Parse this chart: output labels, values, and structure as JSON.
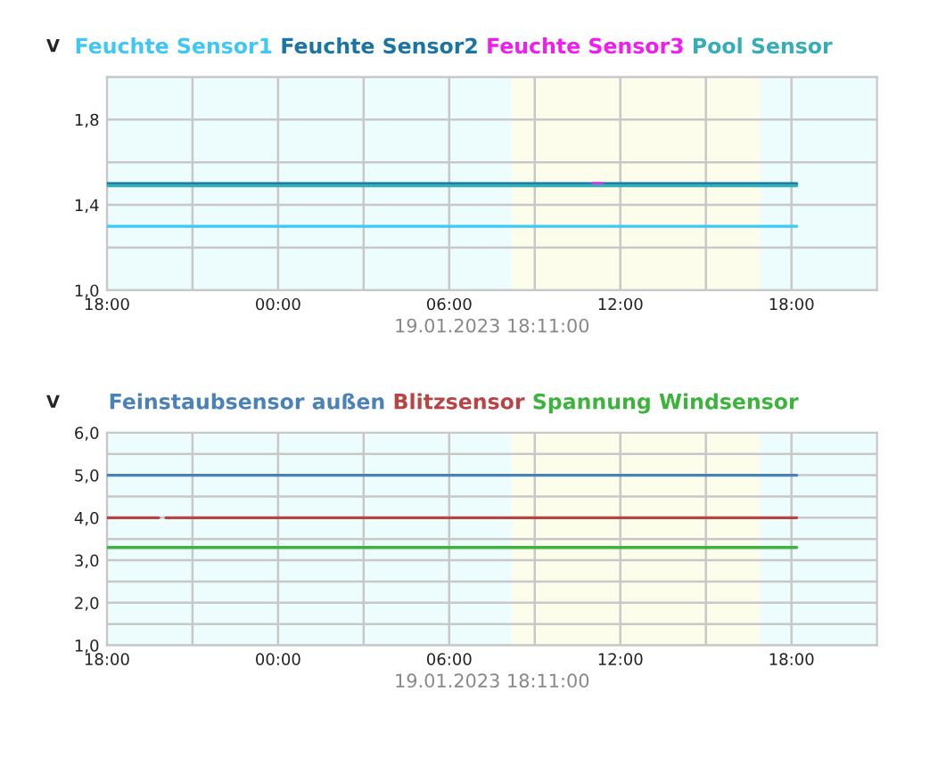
{
  "chart_data": [
    {
      "type": "line",
      "ylabel": "V",
      "xlabel": "19.01.2023 18:11:00",
      "legend": "top",
      "grid": true,
      "xlim": [
        "2023-01-18T18:00",
        "2023-01-19T21:00"
      ],
      "xticks": [
        {
          "value": "2023-01-18T18:00",
          "label": "18:00"
        },
        {
          "value": "2023-01-18T21:00",
          "label": null
        },
        {
          "value": "2023-01-19T00:00",
          "label": "00:00"
        },
        {
          "value": "2023-01-19T03:00",
          "label": null
        },
        {
          "value": "2023-01-19T06:00",
          "label": "06:00"
        },
        {
          "value": "2023-01-19T09:00",
          "label": null
        },
        {
          "value": "2023-01-19T12:00",
          "label": "12:00"
        },
        {
          "value": "2023-01-19T15:00",
          "label": null
        },
        {
          "value": "2023-01-19T18:00",
          "label": "18:00"
        }
      ],
      "ylim": [
        1.0,
        2.0
      ],
      "yticks": [
        {
          "value": 1.0,
          "label": "1,0"
        },
        {
          "value": 1.2,
          "label": null
        },
        {
          "value": 1.4,
          "label": "1,4"
        },
        {
          "value": 1.6,
          "label": null
        },
        {
          "value": 1.8,
          "label": "1,8"
        },
        {
          "value": 2.0,
          "label": null
        }
      ],
      "bands": [
        {
          "axis": "x",
          "from": "2023-01-19T08:12",
          "to": "2023-01-19T16:54",
          "color": "#fdfdec"
        }
      ],
      "series": [
        {
          "name": "Feuchte Sensor1",
          "color": "#3fc8f4",
          "x": [
            "2023-01-18T18:00",
            "2023-01-19T18:11"
          ],
          "values": [
            1.3,
            1.3
          ]
        },
        {
          "name": "Feuchte Sensor2",
          "color": "#1a74a4",
          "x": [
            "2023-01-18T18:00",
            "2023-01-19T18:11"
          ],
          "values": [
            1.5,
            1.5
          ]
        },
        {
          "name": "Feuchte Sensor3",
          "color": "#f01cf0",
          "x": [
            "2023-01-19T11:02",
            "2023-01-19T11:22"
          ],
          "values": [
            1.5,
            1.5
          ]
        },
        {
          "name": "Pool Sensor",
          "color": "#35aeb6",
          "x": [
            "2023-01-18T18:00",
            "2023-01-19T18:11"
          ],
          "values": [
            1.49,
            1.49
          ]
        }
      ]
    },
    {
      "type": "line",
      "ylabel": "V",
      "xlabel": "19.01.2023 18:11:00",
      "legend": "top",
      "grid": true,
      "xlim": [
        "2023-01-18T18:00",
        "2023-01-19T21:00"
      ],
      "xticks": [
        {
          "value": "2023-01-18T18:00",
          "label": "18:00"
        },
        {
          "value": "2023-01-18T21:00",
          "label": null
        },
        {
          "value": "2023-01-19T00:00",
          "label": "00:00"
        },
        {
          "value": "2023-01-19T03:00",
          "label": null
        },
        {
          "value": "2023-01-19T06:00",
          "label": "06:00"
        },
        {
          "value": "2023-01-19T09:00",
          "label": null
        },
        {
          "value": "2023-01-19T12:00",
          "label": "12:00"
        },
        {
          "value": "2023-01-19T15:00",
          "label": null
        },
        {
          "value": "2023-01-19T18:00",
          "label": "18:00"
        }
      ],
      "ylim": [
        1.0,
        6.0
      ],
      "yticks": [
        {
          "value": 1.0,
          "label": "1,0"
        },
        {
          "value": 1.5,
          "label": null
        },
        {
          "value": 2.0,
          "label": "2,0"
        },
        {
          "value": 2.5,
          "label": null
        },
        {
          "value": 3.0,
          "label": "3,0"
        },
        {
          "value": 3.5,
          "label": null
        },
        {
          "value": 4.0,
          "label": "4,0"
        },
        {
          "value": 4.5,
          "label": null
        },
        {
          "value": 5.0,
          "label": "5,0"
        },
        {
          "value": 5.5,
          "label": null
        },
        {
          "value": 6.0,
          "label": "6,0"
        }
      ],
      "bands": [
        {
          "axis": "x",
          "from": "2023-01-19T08:12",
          "to": "2023-01-19T16:54",
          "color": "#fdfdec"
        }
      ],
      "series": [
        {
          "name": "Feinstaubsensor außen",
          "color": "#4a82b8",
          "x": [
            "2023-01-18T18:00",
            "2023-01-19T18:11"
          ],
          "values": [
            5.0,
            5.0
          ]
        },
        {
          "name": "Blitzsensor",
          "color": "#b84444",
          "x": [
            "2023-01-18T18:00",
            "2023-01-18T19:49",
            "2023-01-18T19:56",
            "2023-01-18T20:04",
            "2023-01-19T18:11"
          ],
          "values": [
            4.0,
            4.0,
            null,
            4.0,
            4.0
          ]
        },
        {
          "name": "Spannung Windsensor",
          "color": "#3cb43c",
          "x": [
            "2023-01-18T18:00",
            "2023-01-19T18:11"
          ],
          "values": [
            3.3,
            3.3
          ]
        }
      ]
    }
  ]
}
